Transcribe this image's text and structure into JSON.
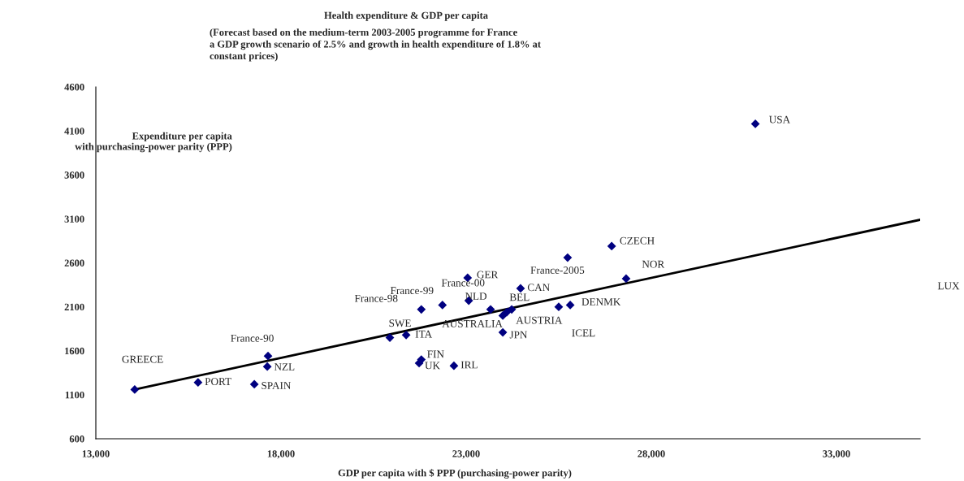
{
  "chart_data": {
    "type": "scatter",
    "title": "Health expenditure & GDP per capita",
    "subtitle": "(Forecast based on the medium-term 2003-2005 programme for France\na GDP growth scenario of 2.5% and growth in health expenditure of 1.8% at\nconstant prices)",
    "xlabel": "GDP per capita with $ PPP (purchasing-power parity)",
    "ylabel": "Expenditure per capita\nwith purchasing-power parity (PPP)",
    "xlim": [
      13000,
      35260
    ],
    "ylim": [
      600,
      4600
    ],
    "xticks": [
      {
        "value": 13000,
        "label": "13,000"
      },
      {
        "value": 18000,
        "label": "18,000"
      },
      {
        "value": 23000,
        "label": "23,000"
      },
      {
        "value": 28000,
        "label": "28,000"
      },
      {
        "value": 33000,
        "label": "33,000"
      }
    ],
    "yticks": [
      600,
      1100,
      1600,
      2100,
      2600,
      3100,
      3600,
      4100,
      4600
    ],
    "grid": false,
    "legend": false,
    "marker": "diamond",
    "series": [
      {
        "color": "#000080",
        "x": [
          14050,
          15760,
          17280,
          17650,
          17630,
          20940,
          21380,
          21790,
          21730,
          22670,
          21790,
          22360,
          23040,
          23070,
          23660,
          24230,
          24100,
          23990,
          23990,
          24470,
          25740,
          25500,
          25810,
          26930,
          27320,
          30810
        ],
        "values": [
          1160,
          1240,
          1220,
          1540,
          1420,
          1750,
          1780,
          1500,
          1460,
          1430,
          2070,
          2120,
          2430,
          2170,
          2070,
          2070,
          2040,
          2000,
          1810,
          2310,
          2660,
          2100,
          2120,
          2790,
          2420,
          4180
        ]
      },
      {
        "type": "line",
        "color": "#000000",
        "line_style": "solid",
        "marker": "none",
        "x": [
          14050,
          35260
        ],
        "values": [
          1160,
          3090
        ]
      }
    ],
    "annotations": [
      {
        "text": "GREECE",
        "x": 14050,
        "y": 1160
      },
      {
        "text": "PORT",
        "x": 15760,
        "y": 1240
      },
      {
        "text": "SPAIN",
        "x": 17280,
        "y": 1220
      },
      {
        "text": "France-90",
        "x": 17650,
        "y": 1540
      },
      {
        "text": "NZL",
        "x": 17630,
        "y": 1420
      },
      {
        "text": "SWE",
        "x": 20940,
        "y": 1750
      },
      {
        "text": "ITA",
        "x": 21380,
        "y": 1780
      },
      {
        "text": "FIN",
        "x": 21790,
        "y": 1500
      },
      {
        "text": "UK",
        "x": 21730,
        "y": 1460
      },
      {
        "text": "IRL",
        "x": 22670,
        "y": 1430
      },
      {
        "text": "France-98",
        "x": 21790,
        "y": 2070
      },
      {
        "text": "France-99",
        "x": 22360,
        "y": 2120
      },
      {
        "text": "GER",
        "x": 23040,
        "y": 2430
      },
      {
        "text": "France-00",
        "x": 23070,
        "y": 2170
      },
      {
        "text": "NLD",
        "x": 23660,
        "y": 2070
      },
      {
        "text": "BEL",
        "x": 24230,
        "y": 2070
      },
      {
        "text": "AUSTRIA",
        "x": 24100,
        "y": 2040
      },
      {
        "text": "AUSTRALIA",
        "x": 23990,
        "y": 2000
      },
      {
        "text": "JPN",
        "x": 23990,
        "y": 1810
      },
      {
        "text": "CAN",
        "x": 24470,
        "y": 2310
      },
      {
        "text": "France-2005",
        "x": 25740,
        "y": 2660
      },
      {
        "text": "ICEL",
        "x": 25500,
        "y": 2100
      },
      {
        "text": "DENMK",
        "x": 25810,
        "y": 2120
      },
      {
        "text": "CZECH",
        "x": 26930,
        "y": 2790
      },
      {
        "text": "NOR",
        "x": 27320,
        "y": 2420
      },
      {
        "text": "USA",
        "x": 30810,
        "y": 4180
      },
      "LUX"
    ]
  }
}
